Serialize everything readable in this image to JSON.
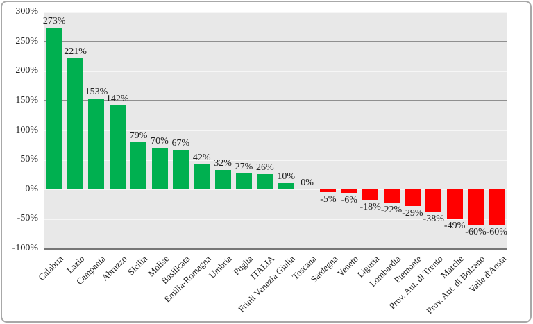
{
  "chart_data": {
    "type": "bar",
    "title": "",
    "xlabel": "",
    "ylabel": "",
    "grid": true,
    "legend": null,
    "ylim": [
      -100,
      300
    ],
    "categories": [
      "Calabria",
      "Lazio",
      "Campania",
      "Abruzzo",
      "Sicilia",
      "Molise",
      "Basilicata",
      "Emilia-Romagna",
      "Umbria",
      "Puglia",
      "ITALIA",
      "Friuli Venezia Giulia",
      "Toscana",
      "Sardegna",
      "Veneto",
      "Liguria",
      "Lombardia",
      "Piemonte",
      "Prov. Aut. di Trento",
      "Marche",
      "Prov. Aut. di Bolzano",
      "Valle d'Aosta"
    ],
    "values": [
      273,
      221,
      153,
      142,
      79,
      70,
      67,
      42,
      32,
      27,
      26,
      10,
      0,
      -5,
      -6,
      -18,
      -22,
      -29,
      -38,
      -49,
      -60,
      -60
    ],
    "value_labels": [
      "273%",
      "221%",
      "153%",
      "142%",
      "79%",
      "70%",
      "67%",
      "42%",
      "32%",
      "27%",
      "26%",
      "10%",
      "0%",
      "-5%",
      "-6%",
      "-18%",
      "-22%",
      "-29%",
      "-38%",
      "-49%",
      "-60%",
      "-60%"
    ],
    "yticks": [
      {
        "value": 300,
        "label": "300%"
      },
      {
        "value": 250,
        "label": "250%"
      },
      {
        "value": 200,
        "label": "200%"
      },
      {
        "value": 150,
        "label": "150%"
      },
      {
        "value": 100,
        "label": "100%"
      },
      {
        "value": 50,
        "label": "50%"
      },
      {
        "value": 0,
        "label": "0%"
      },
      {
        "value": -50,
        "label": "-50%"
      },
      {
        "value": -100,
        "label": "-100%"
      }
    ],
    "colors": {
      "positive": "#00b050",
      "negative": "#ff0000"
    }
  },
  "style": {
    "plot_bg": "#e8e8e8",
    "gridline": "#8f8f8f",
    "gridline_highlight": "#f6f6f6",
    "baseline": "#767676",
    "frame_border": "#a8a8a8",
    "text": "#212121"
  }
}
